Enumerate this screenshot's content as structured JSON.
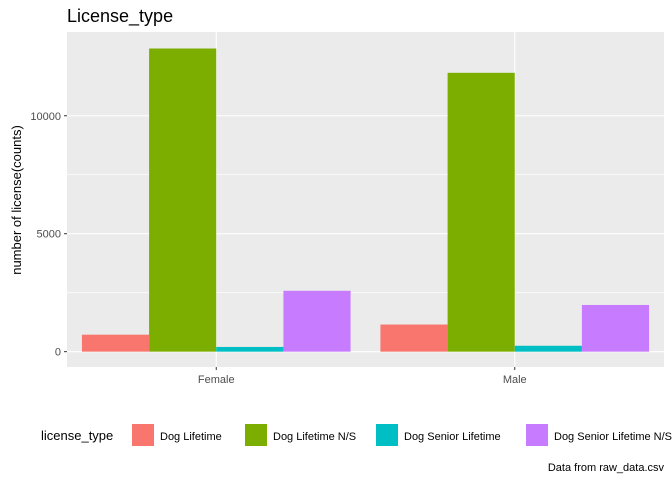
{
  "chart_data": {
    "type": "bar",
    "title": "License_type",
    "xlabel": "",
    "ylabel": "number of license(counts)",
    "categories": [
      "Female",
      "Male"
    ],
    "series": [
      {
        "name": "Dog Lifetime",
        "color": "#F8766D",
        "values": [
          720,
          1150
        ]
      },
      {
        "name": "Dog Lifetime N/S",
        "color": "#7CAE00",
        "values": [
          12850,
          11820
        ]
      },
      {
        "name": "Dog Senior Lifetime",
        "color": "#00BFC4",
        "values": [
          200,
          250
        ]
      },
      {
        "name": "Dog Senior Lifetime N/S",
        "color": "#C77CFF",
        "values": [
          2580,
          1980
        ]
      }
    ],
    "ylim": [
      -650,
      13550
    ],
    "yticks": [
      0,
      5000,
      10000
    ],
    "ytick_labels": [
      "0",
      "5000",
      "10000"
    ],
    "grid": true,
    "legend_title": "license_type",
    "legend_position": "bottom",
    "caption": "Data from raw_data.csv",
    "panel_background": "#EBEBEB"
  }
}
